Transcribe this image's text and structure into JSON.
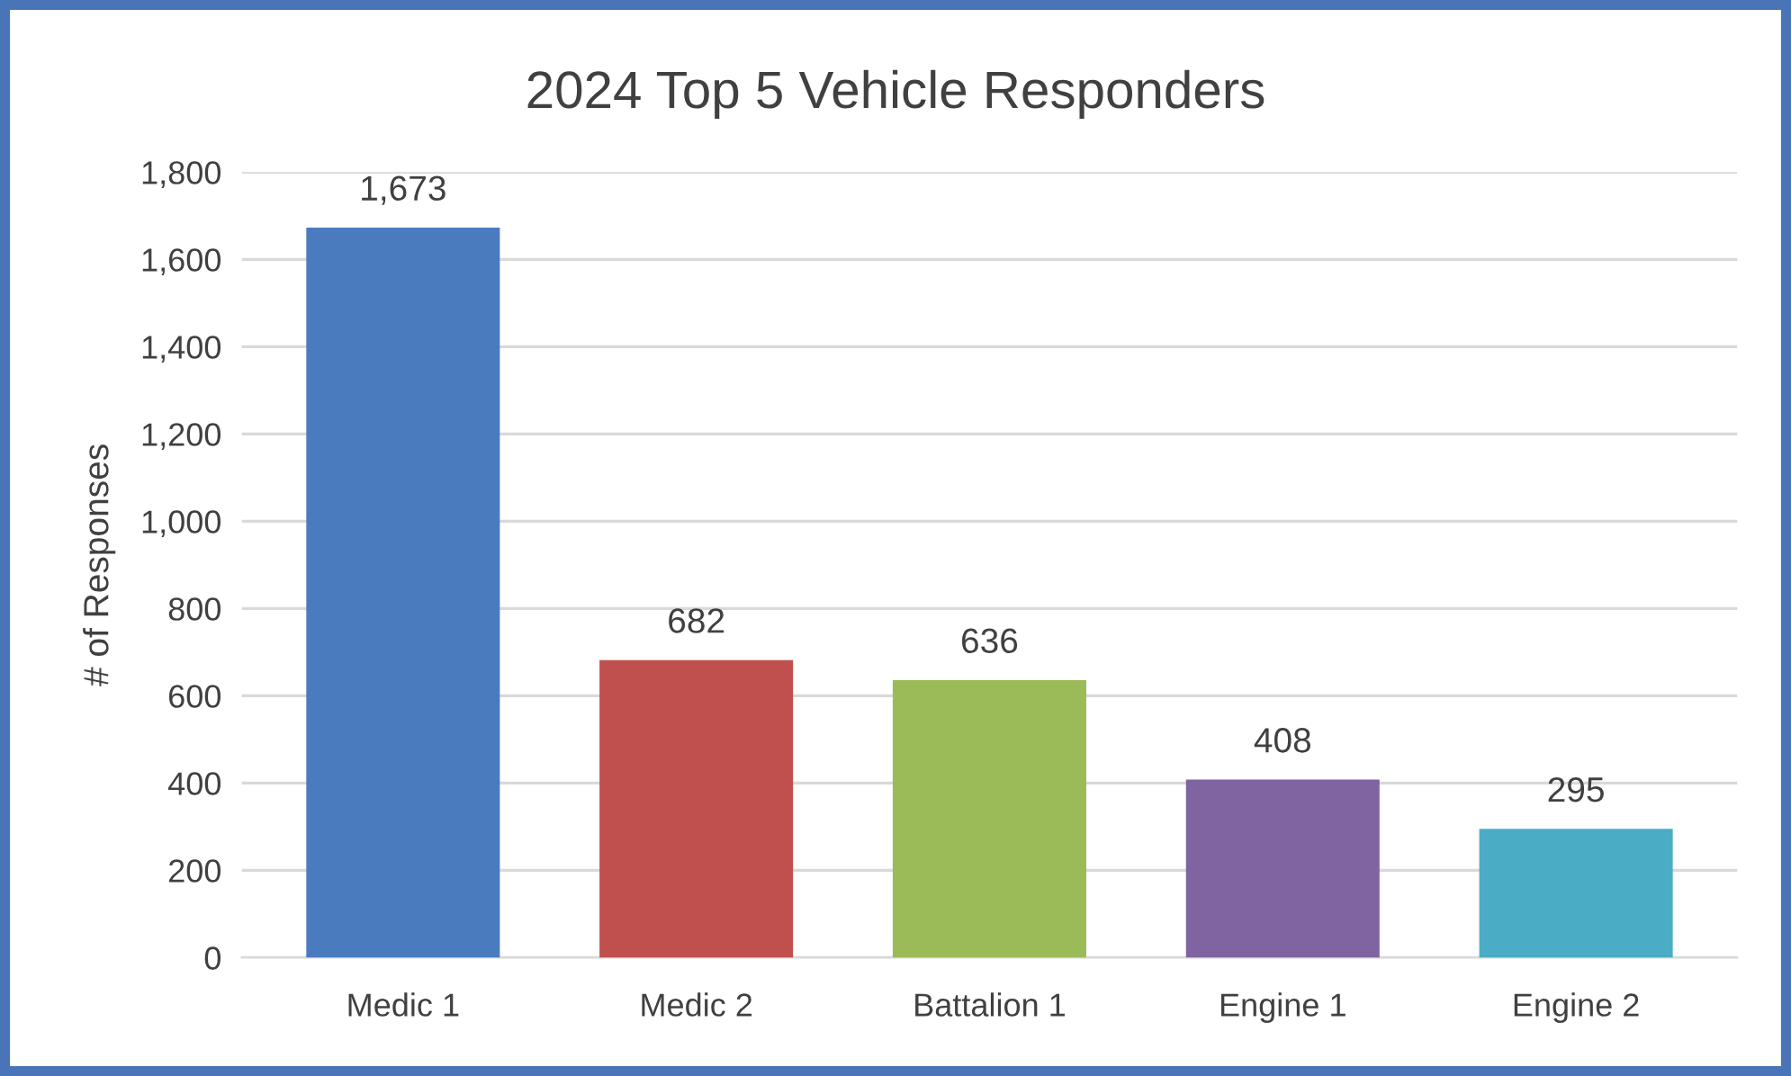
{
  "chart_data": {
    "type": "bar",
    "title": "2024 Top 5 Vehicle Responders",
    "ylabel": "# of Responses",
    "categories": [
      "Medic 1",
      "Medic 2",
      "Battalion 1",
      "Engine 1",
      "Engine 2"
    ],
    "values": [
      1673,
      682,
      636,
      408,
      295
    ],
    "colors": [
      "#4a7bbf",
      "#c0504d",
      "#9bbb59",
      "#8064a2",
      "#4bacc6"
    ],
    "ylim": [
      0,
      1800
    ],
    "yticks": [
      0,
      200,
      400,
      600,
      800,
      {
        "value": 1000,
        "label": "1,000"
      },
      {
        "value": 1200,
        "label": "1,200"
      },
      {
        "value": 1400,
        "label": "1,400"
      },
      {
        "value": 1600,
        "label": "1,600"
      },
      {
        "value": 1800,
        "label": "1,800"
      }
    ],
    "value_labels": [
      "1,673",
      "682",
      "636",
      "408",
      "295"
    ],
    "grid": "y",
    "legend": false
  }
}
